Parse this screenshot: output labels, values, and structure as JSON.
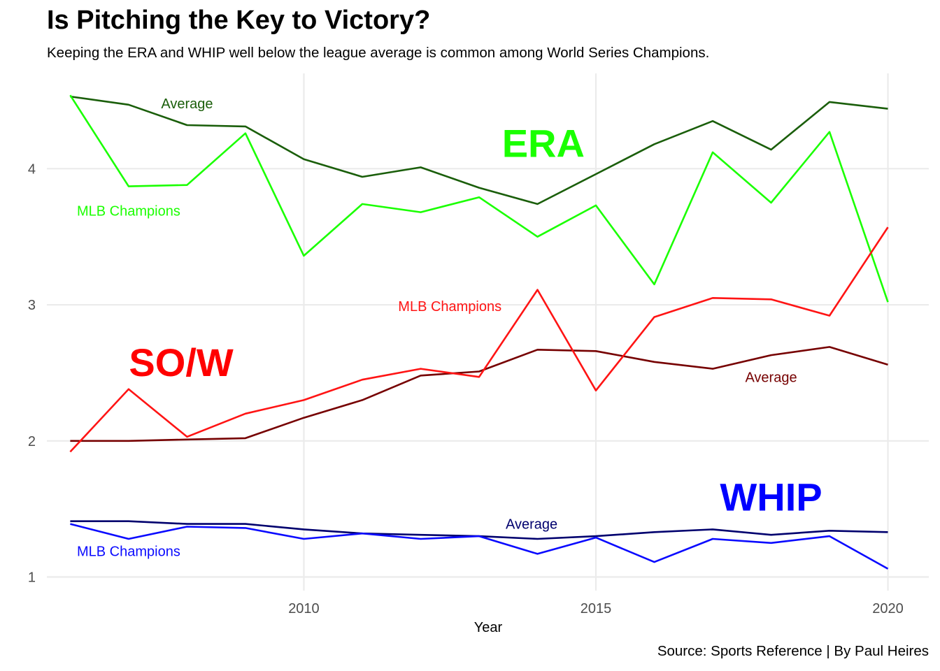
{
  "title": "Is Pitching the Key to Victory?",
  "subtitle": "Keeping the ERA and WHIP well below the league average is common among World Series Champions.",
  "caption": "Source: Sports Reference | By Paul Heires",
  "chart_data": {
    "type": "line",
    "xlabel": "Year",
    "ylabel": "",
    "xlim": [
      2005.6,
      2020.7
    ],
    "ylim": [
      0.9,
      4.7
    ],
    "x_ticks": [
      2010,
      2015,
      2020
    ],
    "y_ticks": [
      1,
      2,
      3,
      4
    ],
    "grid": true,
    "x": [
      2006,
      2007,
      2008,
      2009,
      2010,
      2011,
      2012,
      2013,
      2014,
      2015,
      2016,
      2017,
      2018,
      2019,
      2020
    ],
    "series": [
      {
        "group": "ERA",
        "name": "Average",
        "color": "#1a5e0a",
        "values": [
          4.53,
          4.47,
          4.32,
          4.31,
          4.07,
          3.94,
          4.01,
          3.86,
          3.74,
          3.96,
          4.18,
          4.35,
          4.14,
          4.49,
          4.44
        ]
      },
      {
        "group": "ERA",
        "name": "MLB Champions",
        "color": "#1aff00",
        "values": [
          4.54,
          3.87,
          3.88,
          4.26,
          3.36,
          3.74,
          3.68,
          3.79,
          3.5,
          3.73,
          3.15,
          4.12,
          3.75,
          4.27,
          3.02
        ]
      },
      {
        "group": "SO/W",
        "name": "Average",
        "color": "#760000",
        "values": [
          2.0,
          2.0,
          2.01,
          2.02,
          2.17,
          2.3,
          2.48,
          2.51,
          2.67,
          2.66,
          2.58,
          2.53,
          2.63,
          2.69,
          2.56
        ]
      },
      {
        "group": "SO/W",
        "name": "MLB Champions",
        "color": "#ff1414",
        "values": [
          1.92,
          2.38,
          2.03,
          2.2,
          2.3,
          2.45,
          2.53,
          2.47,
          3.11,
          2.37,
          2.91,
          3.05,
          3.04,
          2.92,
          3.57
        ]
      },
      {
        "group": "WHIP",
        "name": "Average",
        "color": "#00006e",
        "values": [
          1.41,
          1.41,
          1.39,
          1.39,
          1.35,
          1.32,
          1.31,
          1.3,
          1.28,
          1.3,
          1.33,
          1.35,
          1.31,
          1.34,
          1.33
        ]
      },
      {
        "group": "WHIP",
        "name": "MLB Champions",
        "color": "#0a0aff",
        "values": [
          1.39,
          1.28,
          1.37,
          1.36,
          1.28,
          1.32,
          1.28,
          1.3,
          1.17,
          1.29,
          1.11,
          1.28,
          1.25,
          1.3,
          1.06
        ]
      }
    ],
    "annotations": [
      {
        "text": "Average",
        "x": 2008.0,
        "y": 4.48,
        "color": "#1a5e0a"
      },
      {
        "text": "MLB Champions",
        "x": 2007.0,
        "y": 3.69,
        "color": "#1aff00"
      },
      {
        "text": "MLB Champions",
        "x": 2012.5,
        "y": 2.99,
        "color": "#ff1414"
      },
      {
        "text": "Average",
        "x": 2018.0,
        "y": 2.47,
        "color": "#760000"
      },
      {
        "text": "Average",
        "x": 2013.9,
        "y": 1.39,
        "color": "#00006e"
      },
      {
        "text": "MLB Champions",
        "x": 2007.0,
        "y": 1.19,
        "color": "#0a0aff"
      }
    ],
    "group_labels": [
      {
        "text": "ERA",
        "x": 2014.1,
        "y": 4.19,
        "color": "#1aff00"
      },
      {
        "text": "SO/W",
        "x": 2007.9,
        "y": 2.58,
        "color": "#ff0000"
      },
      {
        "text": "WHIP",
        "x": 2018.0,
        "y": 1.59,
        "color": "#0000ff"
      }
    ]
  }
}
